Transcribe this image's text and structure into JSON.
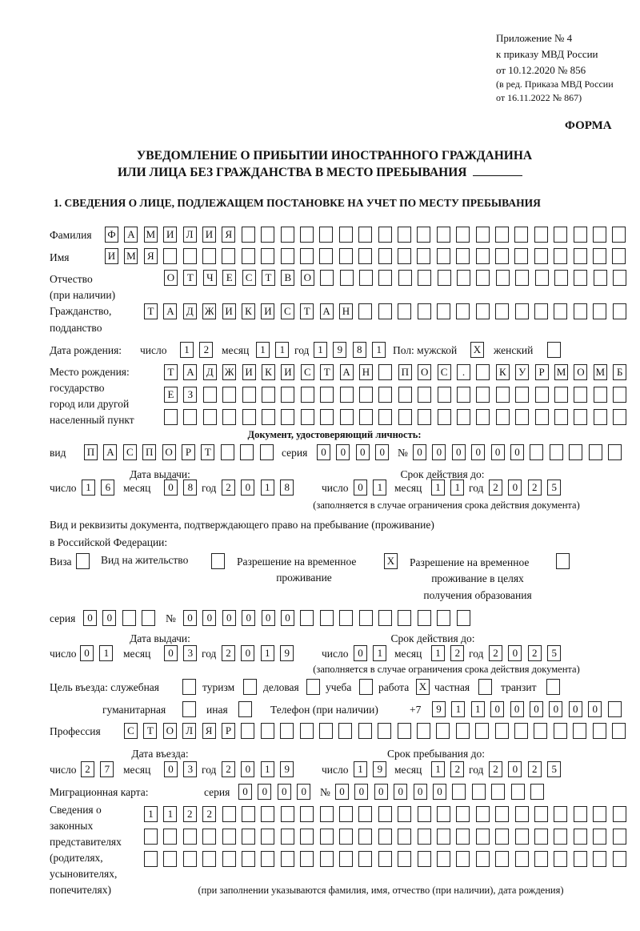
{
  "header": {
    "appendix": "Приложение № 4",
    "order": "к приказу МВД России",
    "order_date": "от 10.12.2020 № 856",
    "revision_1": "(в ред. Приказа МВД России",
    "revision_2": "от 16.11.2022 № 867)",
    "form_label": "ФОРМА"
  },
  "title": {
    "line1": "УВЕДОМЛЕНИЕ О ПРИБЫТИИ ИНОСТРАННОГО ГРАЖДАНИНА",
    "line2": "ИЛИ ЛИЦА БЕЗ ГРАЖДАНСТВА В МЕСТО ПРЕБЫВАНИЯ"
  },
  "section1": {
    "heading": "1. СВЕДЕНИЯ О ЛИЦЕ, ПОДЛЕЖАЩЕМ ПОСТАНОВКЕ НА УЧЕТ ПО МЕСТУ ПРЕБЫВАНИЯ",
    "labels": {
      "surname": "Фамилия",
      "name": "Имя",
      "patronymic_1": "Отчество",
      "patronymic_2": "(при наличии)",
      "citizenship_1": "Гражданство,",
      "citizenship_2": "подданство",
      "birth_date": "Дата рождения:",
      "day": "число",
      "month": "месяц",
      "year": "год",
      "sex": "Пол: мужской",
      "female": "женский",
      "birthplace_1": "Место рождения:",
      "birthplace_2": "государство",
      "birthplace_3": "город или другой",
      "birthplace_4": "населенный пункт",
      "id_doc": "Документ, удостоверяющий личность:",
      "kind": "вид",
      "series": "серия",
      "number": "№",
      "issue_date": "Дата выдачи:",
      "valid_until": "Срок действия до:",
      "validity_note": "(заполняется в случае ограничения срока действия документа)",
      "stay_doc_1": "Вид и реквизиты документа, подтверждающего право на пребывание (проживание)",
      "stay_doc_2": "в Российской Федерации:",
      "visa": "Виза",
      "residence_permit": "Вид на жительство",
      "trp_1": "Разрешение на временное",
      "trp_2": "проживание",
      "trp_edu_1": "Разрешение на временное",
      "trp_edu_2": "проживание в целях",
      "trp_edu_3": "получения образования",
      "purpose": "Цель въезда: служебная",
      "tourism": "туризм",
      "business": "деловая",
      "study": "учеба",
      "work": "работа",
      "private": "частная",
      "transit": "транзит",
      "humanitarian": "гуманитарная",
      "other": "иная",
      "phone": "Телефон (при наличии)",
      "phone_prefix": "+7",
      "profession": "Профессия",
      "entry_date": "Дата въезда:",
      "stay_until": "Срок пребывания до:",
      "migration_card": "Миграционная карта:",
      "reps_1": "Сведения о",
      "reps_2": "законных",
      "reps_3": "представителях",
      "reps_4": "(родителях,",
      "reps_5": "усыновителях,",
      "reps_6": "попечителях)",
      "reps_note": "(при заполнении указываются фамилия, имя, отчество (при наличии), дата рождения)"
    },
    "values": {
      "surname": "ФАМИЛИЯ",
      "name": "ИМЯ",
      "patronymic": "ОТЧЕСТВО",
      "citizenship": "ТАДЖИКИСТАН",
      "birth_day": "12",
      "birth_month": "11",
      "birth_year": "1981",
      "sex_male": "X",
      "sex_female": "",
      "birthplace_1": "ТАДЖИКИСТАН ПОС. КУРМОМБ",
      "birthplace_2": "ЕЗ",
      "birthplace_3": "",
      "id_kind": "ПАСПОРТ",
      "id_series": "0000",
      "id_number": "000000",
      "id_issue_day": "16",
      "id_issue_month": "08",
      "id_issue_year": "2018",
      "id_valid_day": "01",
      "id_valid_month": "11",
      "id_valid_year": "2025",
      "visa": "",
      "residence_permit": "",
      "trp": "X",
      "trp_edu": "",
      "stay_series": "00",
      "stay_number": "000000",
      "stay_issue_day": "01",
      "stay_issue_month": "03",
      "stay_issue_year": "2019",
      "stay_valid_day": "01",
      "stay_valid_month": "12",
      "stay_valid_year": "2025",
      "purpose_official": "",
      "purpose_tourism": "",
      "purpose_business": "",
      "purpose_study": "",
      "purpose_work": "X",
      "purpose_private": "",
      "purpose_transit": "",
      "purpose_humanitarian": "",
      "purpose_other": "",
      "phone": "911000000",
      "profession": "СТОЛЯР",
      "entry_day": "27",
      "entry_month": "03",
      "entry_year": "2019",
      "stay_until_day": "19",
      "stay_until_month": "12",
      "stay_until_year": "2025",
      "mc_series": "0000",
      "mc_number": "000000",
      "reps_1": "1122",
      "reps_2": "",
      "reps_3": ""
    }
  }
}
